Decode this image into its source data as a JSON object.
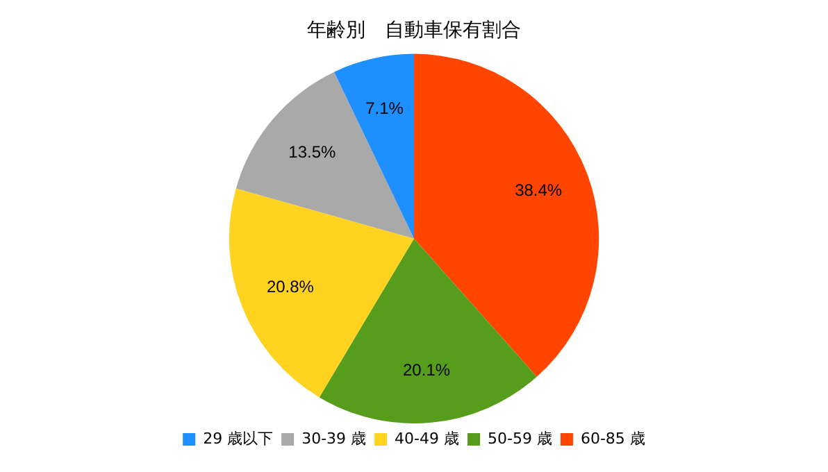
{
  "chart_data": {
    "type": "pie",
    "title": "年齢別　自動車保有割合",
    "categories": [
      "29 歳以下",
      "30-39 歳",
      "40-49 歳",
      "50-59 歳",
      "60-85 歳"
    ],
    "values": [
      7.1,
      13.5,
      20.8,
      20.1,
      38.4
    ],
    "value_labels": [
      "7.1%",
      "13.5%",
      "20.8%",
      "20.1%",
      "38.4%"
    ],
    "colors": [
      "#1e8fff",
      "#a9a9a9",
      "#ffd320",
      "#579d1c",
      "#ff4500"
    ],
    "legend": "bottom"
  }
}
